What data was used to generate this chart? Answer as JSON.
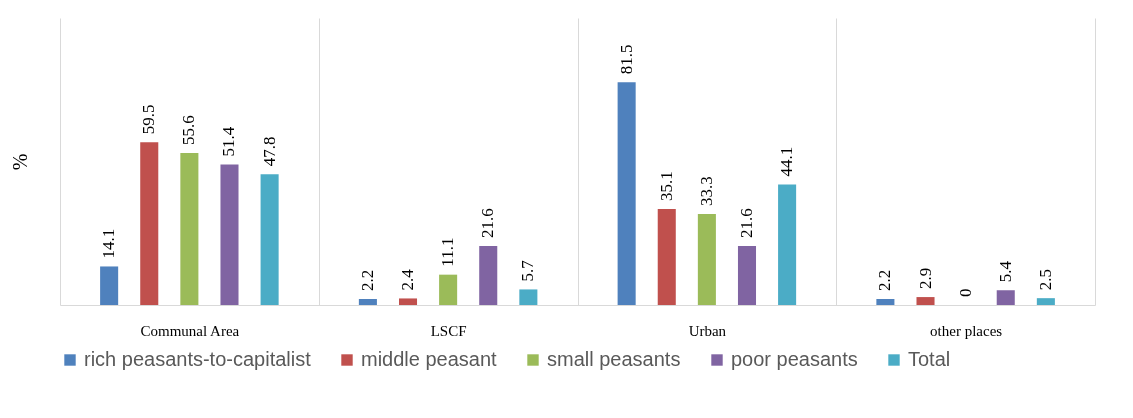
{
  "chart_data": {
    "type": "bar",
    "ylabel": "%",
    "categories": [
      "Communal Area",
      "LSCF",
      "Urban",
      "other places"
    ],
    "series": [
      {
        "name": "rich peasants-to-capitalist",
        "color": "#4f81bd",
        "values": [
          14.1,
          2.2,
          81.5,
          2.2
        ]
      },
      {
        "name": "middle peasant",
        "color": "#c0504d",
        "values": [
          59.5,
          2.4,
          35.1,
          2.9
        ]
      },
      {
        "name": "small peasants",
        "color": "#9bbb59",
        "values": [
          55.6,
          11.1,
          33.3,
          0
        ]
      },
      {
        "name": "poor peasants",
        "color": "#8064a2",
        "values": [
          51.4,
          21.6,
          21.6,
          5.4
        ]
      },
      {
        "name": "Total",
        "color": "#4bacc6",
        "values": [
          47.8,
          5.7,
          44.1,
          2.5
        ]
      }
    ],
    "ylim": [
      0,
      105
    ],
    "data_labels": true,
    "grid": "x",
    "legend": "bottom"
  }
}
